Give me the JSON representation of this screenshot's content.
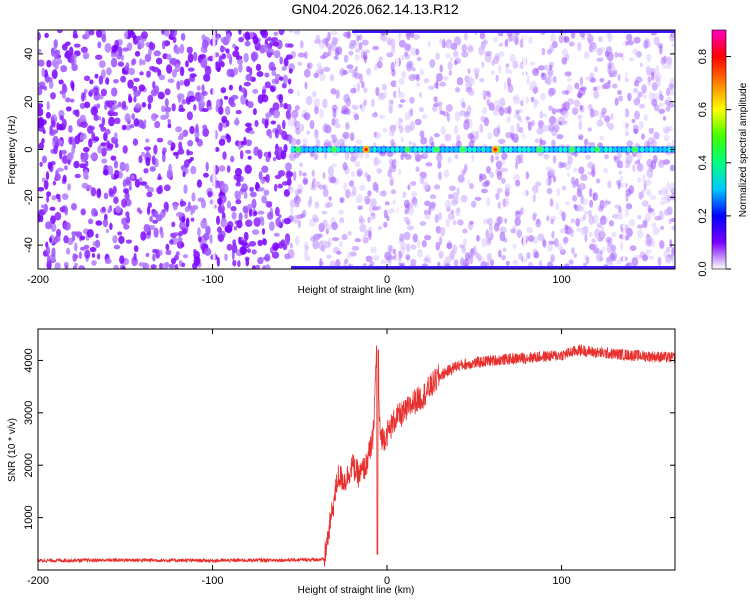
{
  "title": "GN04.2026.062.14.13.R12",
  "chart_data": [
    {
      "type": "heatmap",
      "xlabel": "Height of straight line (km)",
      "ylabel": "Frequency (Hz)",
      "xlim": [
        -200,
        165
      ],
      "ylim": [
        -50,
        50
      ],
      "xticks": [
        -200,
        -100,
        0,
        100
      ],
      "yticks": [
        -40,
        -20,
        0,
        20,
        40
      ],
      "colorbar": {
        "label": "Normalized spectral amplitude",
        "range": [
          0.0,
          0.9
        ],
        "ticks": [
          0.0,
          0.2,
          0.4,
          0.6,
          0.8
        ],
        "colors": [
          "#ffffff",
          "#7a00ff",
          "#0000ff",
          "#00c8ff",
          "#00ff80",
          "#40ff00",
          "#ffff00",
          "#ff8000",
          "#ff0000",
          "#ff00c0"
        ]
      },
      "signal": {
        "frequency_hz": 0,
        "onset_km": -55,
        "peak_positions_km": [
          -12,
          62
        ]
      },
      "edge_bands_hz": [
        50,
        -50
      ],
      "grid": false
    },
    {
      "type": "line",
      "xlabel": "Height of straight line (km)",
      "ylabel": "SNR (10 * v/v)",
      "xlim": [
        -200,
        165
      ],
      "ylim": [
        0,
        4600
      ],
      "xticks": [
        -200,
        -100,
        0,
        100
      ],
      "yticks": [
        1000,
        2000,
        3000,
        4000
      ],
      "color": "#e8302e",
      "grid": false,
      "series": [
        {
          "x": [
            -200,
            -150,
            -100,
            -60,
            -36,
            -32,
            -28,
            -24,
            -20,
            -16,
            -12,
            -8,
            -6,
            -4,
            -2,
            0,
            5,
            10,
            15,
            20,
            25,
            30,
            40,
            60,
            80,
            100,
            110,
            120,
            140,
            165
          ],
          "y": [
            180,
            190,
            180,
            190,
            200,
            1000,
            1800,
            1700,
            2000,
            1800,
            2000,
            2500,
            4200,
            2600,
            2500,
            2600,
            2900,
            3000,
            3200,
            3300,
            3500,
            3700,
            3900,
            4000,
            4050,
            4100,
            4200,
            4150,
            4100,
            4050
          ]
        }
      ]
    }
  ]
}
